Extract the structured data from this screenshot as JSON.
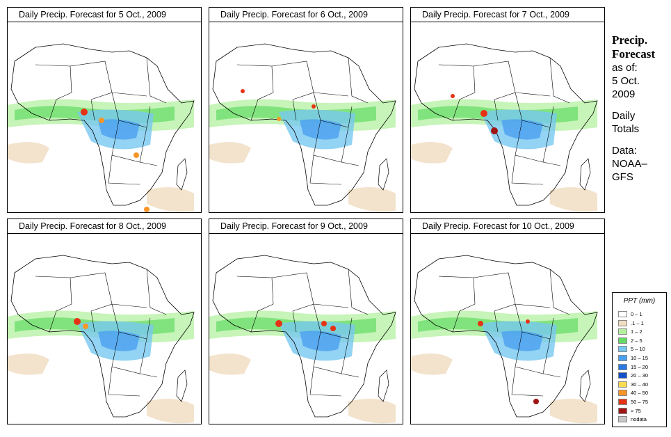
{
  "panels": [
    {
      "title": "Daily Precip. Forecast for  5 Oct., 2009",
      "date": "5 Oct."
    },
    {
      "title": "Daily Precip. Forecast for  6 Oct., 2009",
      "date": "6 Oct."
    },
    {
      "title": "Daily Precip. Forecast for  7 Oct., 2009",
      "date": "7 Oct."
    },
    {
      "title": "Daily Precip. Forecast for  8 Oct., 2009",
      "date": "8 Oct."
    },
    {
      "title": "Daily Precip. Forecast for  9 Oct., 2009",
      "date": "9 Oct."
    },
    {
      "title": "Daily Precip. Forecast for  10 Oct., 2009",
      "date": "10 Oct."
    }
  ],
  "side": {
    "title_line1": "Precip.",
    "title_line2": "Forecast",
    "asof": "as of:",
    "date_line1": "5 Oct.",
    "date_line2": "2009",
    "totals_line1": "Daily",
    "totals_line2": "Totals",
    "data_line1": "Data:",
    "data_line2": "NOAA–",
    "data_line3": "GFS"
  },
  "legend": {
    "title": "PPT (mm)",
    "items": [
      {
        "label": "0 – 1",
        "color": "#ffffff"
      },
      {
        "label": ".1 – 1",
        "color": "#f0dcc0"
      },
      {
        "label": "1 – 2",
        "color": "#b4f0a0"
      },
      {
        "label": "2 – 5",
        "color": "#64dc64"
      },
      {
        "label": "5 – 10",
        "color": "#78c8f0"
      },
      {
        "label": "10 – 15",
        "color": "#4ba0f0"
      },
      {
        "label": "15 – 20",
        "color": "#2878e6"
      },
      {
        "label": "20 – 30",
        "color": "#1450c8"
      },
      {
        "label": "30 – 40",
        "color": "#fadc50"
      },
      {
        "label": "40 – 50",
        "color": "#fa9628"
      },
      {
        "label": "50 – 75",
        "color": "#e63214"
      },
      {
        "label": "> 75",
        "color": "#a01414"
      },
      {
        "label": "nodata",
        "color": "#c8c8c8"
      }
    ]
  }
}
